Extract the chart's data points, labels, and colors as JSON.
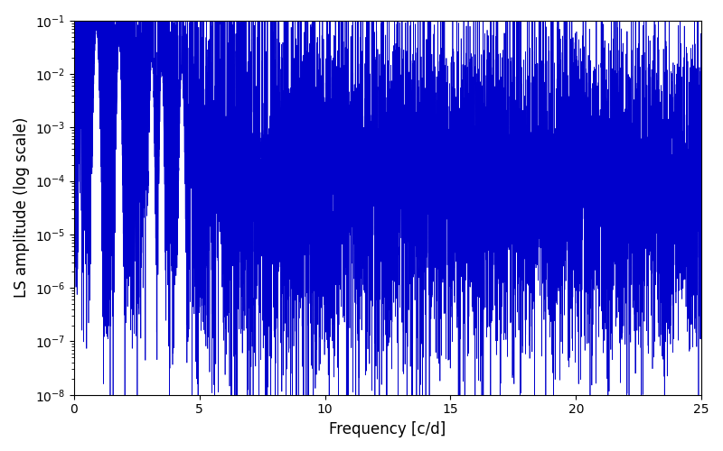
{
  "title": "",
  "xlabel": "Frequency [c/d]",
  "ylabel": "LS amplitude (log scale)",
  "line_color": "#0000cc",
  "xlim": [
    0,
    25
  ],
  "ylim": [
    1e-08,
    0.1
  ],
  "figsize": [
    8.0,
    5.0
  ],
  "dpi": 100,
  "freq_min": 0.0,
  "freq_max": 25.0,
  "n_points": 8000,
  "seed": 137,
  "base_log_amplitude": -4.0,
  "noise_std_low": 2.5,
  "noise_std_high": 1.5,
  "decay_freq_scale": 8.0,
  "low_freq_boost": 2.5
}
